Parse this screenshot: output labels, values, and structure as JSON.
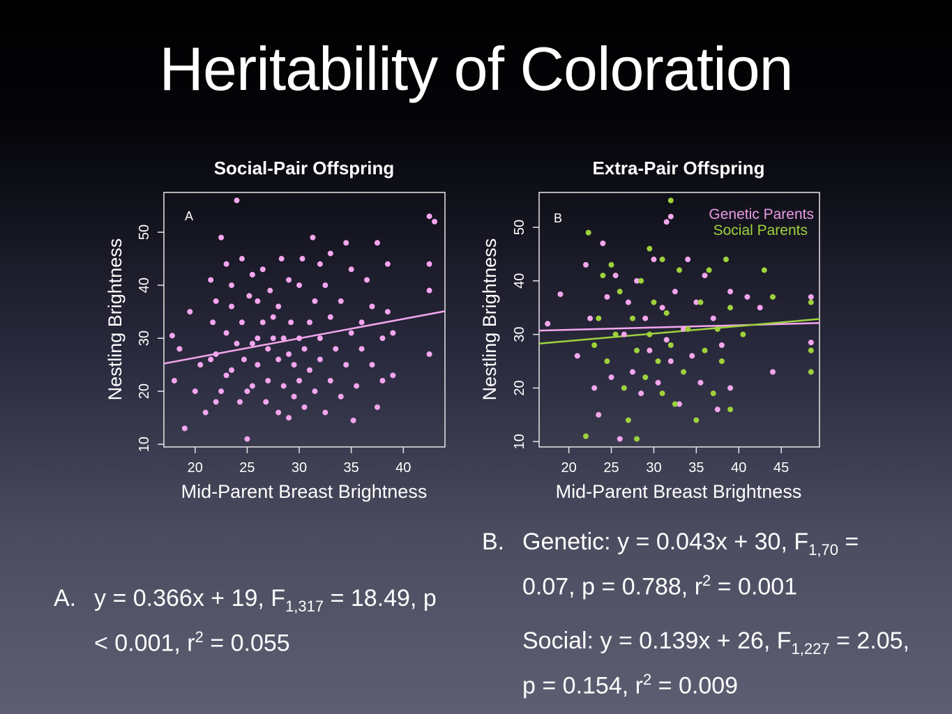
{
  "slide": {
    "title": "Heritability of Coloration"
  },
  "chart_data": [
    {
      "type": "scatter",
      "title": "Social-Pair Offspring",
      "panel_label": "A",
      "xlabel": "Mid-Parent Breast Brightness",
      "ylabel": "Nestling Brightness",
      "xlim": [
        17,
        44
      ],
      "ylim": [
        9.5,
        57.5
      ],
      "xticks": [
        20,
        25,
        30,
        35,
        40
      ],
      "yticks": [
        10,
        20,
        30,
        40,
        50
      ],
      "series": [
        {
          "color": "#f4a6ee",
          "fit": {
            "slope": 0.366,
            "intercept": 19
          },
          "points": [
            [
              17.8,
              30.5
            ],
            [
              18,
              22
            ],
            [
              18.5,
              28
            ],
            [
              19,
              13
            ],
            [
              19.5,
              35
            ],
            [
              20,
              20
            ],
            [
              20.5,
              25
            ],
            [
              21,
              16
            ],
            [
              21.5,
              26
            ],
            [
              21.5,
              41
            ],
            [
              21.7,
              33
            ],
            [
              22,
              18
            ],
            [
              22,
              27
            ],
            [
              22,
              37
            ],
            [
              22.5,
              49
            ],
            [
              22.5,
              20
            ],
            [
              23,
              44
            ],
            [
              23,
              31
            ],
            [
              23,
              23
            ],
            [
              23.5,
              40
            ],
            [
              23.5,
              36
            ],
            [
              23.5,
              24
            ],
            [
              24,
              56
            ],
            [
              24,
              29
            ],
            [
              24.3,
              18
            ],
            [
              24.5,
              45
            ],
            [
              24.5,
              33
            ],
            [
              24.7,
              26
            ],
            [
              25,
              11
            ],
            [
              25,
              20
            ],
            [
              25.2,
              38
            ],
            [
              25.5,
              42
            ],
            [
              25.5,
              29
            ],
            [
              25.5,
              21
            ],
            [
              26,
              37
            ],
            [
              26,
              30
            ],
            [
              26,
              25
            ],
            [
              26.5,
              43
            ],
            [
              26.5,
              33
            ],
            [
              26.8,
              18
            ],
            [
              27,
              28
            ],
            [
              27,
              22
            ],
            [
              27.2,
              39
            ],
            [
              27.5,
              30
            ],
            [
              27.5,
              34
            ],
            [
              28,
              16
            ],
            [
              28,
              26
            ],
            [
              28,
              36
            ],
            [
              28.3,
              45
            ],
            [
              28.5,
              21
            ],
            [
              28.5,
              30
            ],
            [
              29,
              15
            ],
            [
              29,
              41
            ],
            [
              29,
              27
            ],
            [
              29.2,
              33
            ],
            [
              29.5,
              19
            ],
            [
              29.5,
              25
            ],
            [
              30,
              40
            ],
            [
              30,
              30
            ],
            [
              30,
              22
            ],
            [
              30.3,
              45
            ],
            [
              30.5,
              17
            ],
            [
              30.5,
              28
            ],
            [
              31,
              33
            ],
            [
              31,
              24
            ],
            [
              31.3,
              49
            ],
            [
              31.5,
              37
            ],
            [
              31.5,
              20
            ],
            [
              32,
              44
            ],
            [
              32,
              30
            ],
            [
              32,
              26
            ],
            [
              32.5,
              16
            ],
            [
              32.5,
              40
            ],
            [
              33,
              46
            ],
            [
              33,
              22
            ],
            [
              33,
              34
            ],
            [
              33.5,
              28
            ],
            [
              34,
              19
            ],
            [
              34,
              37
            ],
            [
              34.5,
              48
            ],
            [
              34.5,
              25
            ],
            [
              35,
              31
            ],
            [
              35,
              43
            ],
            [
              35.2,
              14.5
            ],
            [
              35.5,
              21
            ],
            [
              36,
              33
            ],
            [
              36,
              28
            ],
            [
              36.5,
              41
            ],
            [
              37,
              25
            ],
            [
              37,
              36
            ],
            [
              37.5,
              48
            ],
            [
              37.5,
              17
            ],
            [
              38,
              30
            ],
            [
              38,
              22
            ],
            [
              38.5,
              35
            ],
            [
              38.5,
              44
            ],
            [
              39,
              31
            ],
            [
              39,
              23
            ],
            [
              42.5,
              53
            ],
            [
              42.5,
              44
            ],
            [
              42.5,
              39
            ],
            [
              42.5,
              27
            ],
            [
              43,
              52
            ]
          ]
        }
      ]
    },
    {
      "type": "scatter",
      "title": "Extra-Pair Offspring",
      "panel_label": "B",
      "xlabel": "Mid-Parent Breast Brightness",
      "ylabel": "Nestling Brightness",
      "xlim": [
        16.5,
        49.5
      ],
      "ylim": [
        9,
        56.5
      ],
      "xticks": [
        20,
        25,
        30,
        35,
        40,
        45
      ],
      "yticks": [
        10,
        20,
        30,
        40,
        50
      ],
      "legend": {
        "position": "top-right",
        "entries": [
          "Genetic Parents",
          "Social Parents"
        ]
      },
      "series": [
        {
          "name": "Genetic Parents",
          "color": "#f4a6ee",
          "fit": {
            "slope": 0.043,
            "intercept": 30
          },
          "points": [
            [
              17.5,
              32
            ],
            [
              19,
              37.5
            ],
            [
              21,
              26
            ],
            [
              22,
              43
            ],
            [
              22.5,
              33
            ],
            [
              23,
              20
            ],
            [
              23.5,
              15
            ],
            [
              24,
              47
            ],
            [
              24.5,
              37
            ],
            [
              25,
              22
            ],
            [
              25.5,
              41
            ],
            [
              26,
              10.5
            ],
            [
              26.5,
              30
            ],
            [
              27,
              36
            ],
            [
              27.5,
              23
            ],
            [
              28,
              40
            ],
            [
              28.5,
              19
            ],
            [
              29,
              33
            ],
            [
              29.5,
              27
            ],
            [
              30,
              44
            ],
            [
              30.5,
              21
            ],
            [
              31,
              35
            ],
            [
              31.5,
              51
            ],
            [
              31.5,
              29
            ],
            [
              32,
              52
            ],
            [
              32,
              25
            ],
            [
              32.5,
              38
            ],
            [
              33,
              17
            ],
            [
              33.5,
              31
            ],
            [
              34,
              44
            ],
            [
              34.5,
              26
            ],
            [
              35,
              36
            ],
            [
              35.5,
              21
            ],
            [
              36,
              41
            ],
            [
              37,
              33
            ],
            [
              37.5,
              16
            ],
            [
              38,
              28
            ],
            [
              39,
              38
            ],
            [
              39,
              20
            ],
            [
              41,
              37
            ],
            [
              42.5,
              35
            ],
            [
              44,
              23
            ],
            [
              48.5,
              37
            ],
            [
              48.5,
              28.5
            ]
          ]
        },
        {
          "name": "Social Parents",
          "color": "#9ed23c",
          "fit": {
            "slope": 0.139,
            "intercept": 26
          },
          "points": [
            [
              22,
              11
            ],
            [
              22.3,
              49
            ],
            [
              23,
              28
            ],
            [
              23.5,
              33
            ],
            [
              24,
              41
            ],
            [
              24.5,
              25
            ],
            [
              25,
              43
            ],
            [
              25.5,
              30
            ],
            [
              26,
              38
            ],
            [
              26.5,
              20
            ],
            [
              27,
              14
            ],
            [
              27.5,
              33
            ],
            [
              28,
              10.5
            ],
            [
              28,
              27
            ],
            [
              28.5,
              40
            ],
            [
              29,
              22
            ],
            [
              29.5,
              30
            ],
            [
              29.5,
              46
            ],
            [
              30,
              36
            ],
            [
              30.5,
              25
            ],
            [
              31,
              19
            ],
            [
              31,
              44
            ],
            [
              31.5,
              34
            ],
            [
              32,
              55
            ],
            [
              32,
              28
            ],
            [
              32.5,
              17
            ],
            [
              33,
              42
            ],
            [
              33.5,
              23
            ],
            [
              34,
              31
            ],
            [
              35,
              14
            ],
            [
              35.5,
              36
            ],
            [
              36,
              27
            ],
            [
              36.5,
              42
            ],
            [
              37,
              19
            ],
            [
              37.5,
              31
            ],
            [
              38,
              25
            ],
            [
              38.5,
              44
            ],
            [
              39,
              35
            ],
            [
              39,
              16
            ],
            [
              40.5,
              30
            ],
            [
              43,
              42
            ],
            [
              44,
              37
            ],
            [
              48.5,
              36
            ],
            [
              48.5,
              27
            ],
            [
              48.5,
              23
            ]
          ]
        }
      ]
    }
  ],
  "captions": {
    "a": {
      "label": "A.",
      "p1": "y = 0.366x + 19, F",
      "sub1": "1,317",
      "p2": " = 18.49, p < 0.001, r",
      "sup1": "2",
      "p3": " = 0.055"
    },
    "b": {
      "label": "B.",
      "g1": "Genetic: y = 0.043x + 30, F",
      "gsub": "1,70",
      "g2": " = 0.07, p = 0.788, r",
      "gsup": "2",
      "g3": " = 0.001",
      "s1": "Social: y = 0.139x + 26, F",
      "ssub": "1,227",
      "s2": " = 2.05, p = 0.154, r",
      "ssup": "2",
      "s3": " = 0.009"
    }
  }
}
